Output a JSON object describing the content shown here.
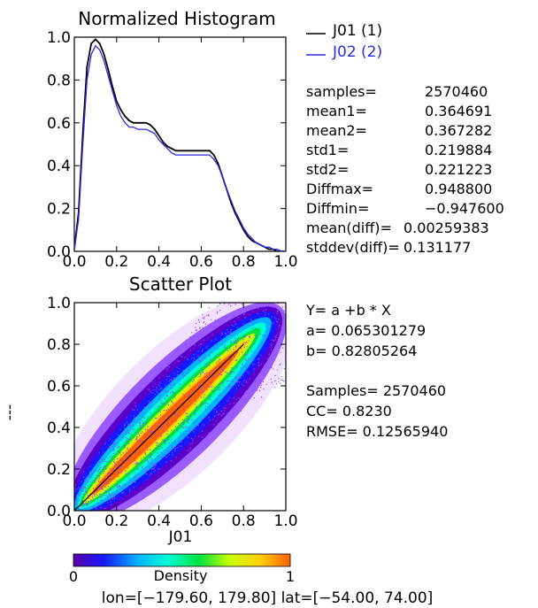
{
  "chart_data": [
    {
      "type": "line",
      "title": "Normalized Histogram",
      "xlim": [
        0.0,
        1.0
      ],
      "ylim": [
        0.0,
        1.0
      ],
      "x_ticks": [
        "0.0",
        "0.2",
        "0.4",
        "0.6",
        "0.8",
        "1.0"
      ],
      "y_ticks": [
        "0.0",
        "0.2",
        "0.4",
        "0.6",
        "0.8",
        "1.0"
      ],
      "legend_position": "right",
      "series": [
        {
          "name": "J01 (1)",
          "color": "#000000",
          "x": [
            0.0,
            0.02,
            0.04,
            0.06,
            0.08,
            0.1,
            0.12,
            0.14,
            0.16,
            0.18,
            0.2,
            0.22,
            0.24,
            0.26,
            0.28,
            0.3,
            0.32,
            0.34,
            0.36,
            0.38,
            0.4,
            0.42,
            0.44,
            0.46,
            0.48,
            0.5,
            0.52,
            0.54,
            0.56,
            0.58,
            0.6,
            0.62,
            0.64,
            0.66,
            0.68,
            0.7,
            0.72,
            0.74,
            0.76,
            0.78,
            0.8,
            0.82,
            0.84,
            0.86,
            0.88,
            0.9,
            0.92,
            0.94,
            0.96,
            0.98,
            1.0
          ],
          "y": [
            0.01,
            0.18,
            0.55,
            0.86,
            0.97,
            0.99,
            0.97,
            0.92,
            0.85,
            0.77,
            0.7,
            0.66,
            0.63,
            0.61,
            0.6,
            0.6,
            0.6,
            0.6,
            0.59,
            0.57,
            0.54,
            0.51,
            0.49,
            0.48,
            0.47,
            0.47,
            0.47,
            0.47,
            0.47,
            0.47,
            0.47,
            0.47,
            0.47,
            0.45,
            0.41,
            0.35,
            0.29,
            0.23,
            0.18,
            0.14,
            0.1,
            0.07,
            0.05,
            0.04,
            0.03,
            0.02,
            0.01,
            0.01,
            0.0,
            0.0,
            0.0
          ]
        },
        {
          "name": "J02 (2)",
          "color": "#2a2ae6",
          "x": [
            0.0,
            0.02,
            0.04,
            0.06,
            0.08,
            0.1,
            0.12,
            0.14,
            0.16,
            0.18,
            0.2,
            0.22,
            0.24,
            0.26,
            0.28,
            0.3,
            0.32,
            0.34,
            0.36,
            0.38,
            0.4,
            0.42,
            0.44,
            0.46,
            0.48,
            0.5,
            0.52,
            0.54,
            0.56,
            0.58,
            0.6,
            0.62,
            0.64,
            0.66,
            0.68,
            0.7,
            0.72,
            0.74,
            0.76,
            0.78,
            0.8,
            0.82,
            0.84,
            0.86,
            0.88,
            0.9,
            0.92,
            0.94,
            0.96,
            0.98,
            1.0
          ],
          "y": [
            0.01,
            0.15,
            0.5,
            0.8,
            0.92,
            0.96,
            0.94,
            0.89,
            0.82,
            0.75,
            0.68,
            0.63,
            0.6,
            0.58,
            0.58,
            0.57,
            0.57,
            0.57,
            0.56,
            0.55,
            0.52,
            0.5,
            0.48,
            0.46,
            0.45,
            0.45,
            0.45,
            0.45,
            0.45,
            0.45,
            0.45,
            0.45,
            0.45,
            0.43,
            0.4,
            0.35,
            0.29,
            0.24,
            0.19,
            0.15,
            0.11,
            0.08,
            0.06,
            0.04,
            0.03,
            0.02,
            0.02,
            0.01,
            0.01,
            0.0,
            0.0
          ]
        }
      ],
      "stats": [
        {
          "label": "samples=",
          "value": "2570460"
        },
        {
          "label": "mean1=",
          "value": "0.364691"
        },
        {
          "label": "mean2=",
          "value": "0.367282"
        },
        {
          "label": "std1=",
          "value": "0.219884"
        },
        {
          "label": "std2=",
          "value": "0.221223"
        },
        {
          "label": "Diffmax=",
          "value": "0.948800"
        },
        {
          "label": "Diffmin=",
          "value": "−0.947600"
        },
        {
          "label": "mean(diff)=",
          "value": "0.00259383"
        },
        {
          "label": "stddev(diff)=",
          "value": "0.131177"
        }
      ]
    },
    {
      "type": "scatter",
      "title": "Scatter Plot",
      "xlabel": "J01",
      "ylabel": "---",
      "xlim": [
        0.0,
        1.0
      ],
      "ylim": [
        0.0,
        1.0
      ],
      "x_ticks": [
        "0.0",
        "0.2",
        "0.4",
        "0.6",
        "0.8",
        "1.0"
      ],
      "y_ticks": [
        "0.0",
        "0.2",
        "0.4",
        "0.6",
        "0.8",
        "1.0"
      ],
      "fit_line": {
        "x": [
          0.0,
          0.8
        ],
        "y": [
          0.0,
          0.8
        ]
      },
      "regression": {
        "equation": "Y= a +b * X",
        "a_text": "a= 0.065301279",
        "b_text": "b= 0.82805264"
      },
      "summary": {
        "samples_text": "Samples= 2570460",
        "cc_text": "CC=  0.8230",
        "rmse_text": "RMSE= 0.12565940"
      },
      "colorbar": {
        "label": "Density",
        "min_label": "0",
        "max_label": "1",
        "colors": [
          "#5a00a8",
          "#1818ff",
          "#00b4ff",
          "#00ffd0",
          "#00e040",
          "#c8ff00",
          "#ffd000",
          "#ff6000"
        ]
      }
    }
  ],
  "footer": {
    "text": "lon=[−179.60, 179.80] lat=[−54.00, 74.00]"
  }
}
